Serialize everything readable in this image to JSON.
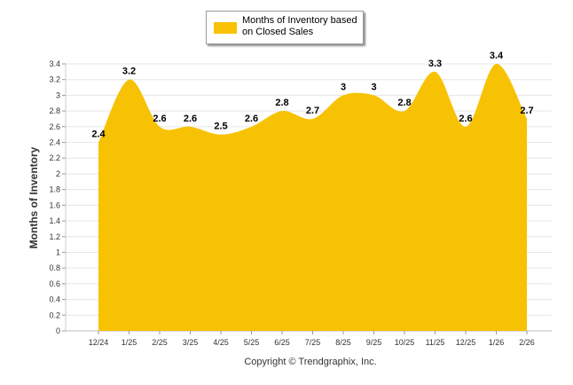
{
  "chart_data": {
    "type": "area",
    "categories": [
      "12/24",
      "1/25",
      "2/25",
      "3/25",
      "4/25",
      "5/25",
      "6/25",
      "7/25",
      "8/25",
      "9/25",
      "10/25",
      "11/25",
      "12/25",
      "1/26",
      "2/26"
    ],
    "series": [
      {
        "name": "Months of Inventory based on Closed Sales",
        "values": [
          2.4,
          3.2,
          2.6,
          2.6,
          2.5,
          2.6,
          2.8,
          2.7,
          3,
          3,
          2.8,
          3.3,
          2.6,
          3.4,
          2.7
        ],
        "labels": [
          "2.4",
          "3.2",
          "2.6",
          "2.6",
          "2.5",
          "2.6",
          "2.8",
          "2.7",
          "3",
          "3",
          "2.8",
          "3.3",
          "2.6",
          "3.4",
          "2.7"
        ]
      }
    ],
    "ylabel": "Months of Inventory",
    "ylim": [
      0,
      3.4
    ],
    "yticks": [
      "0",
      "0.2",
      "0.4",
      "0.6",
      "0.8",
      "1",
      "1.2",
      "1.4",
      "1.6",
      "1.8",
      "2",
      "2.2",
      "2.4",
      "2.6",
      "2.8",
      "3",
      "3.2",
      "3.4"
    ],
    "grid": true,
    "legend_position": "top-center",
    "color": "#f7c204"
  },
  "legend": {
    "label": "Months of Inventory based on Closed Sales"
  },
  "footer": {
    "copyright": "Copyright © Trendgraphix, Inc."
  }
}
